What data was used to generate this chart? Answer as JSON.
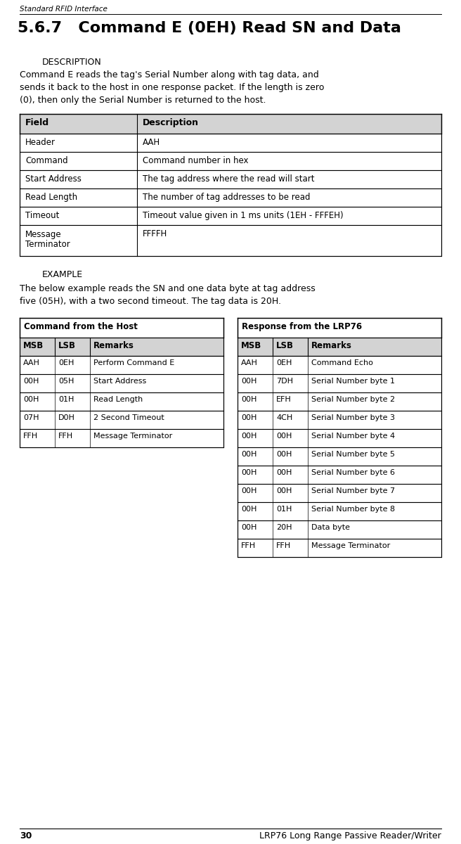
{
  "page_header": "Standard RFID Interface",
  "page_footer_num": "30",
  "page_footer_text": "LRP76 Long Range Passive Reader/Writer",
  "section_title": "5.6.7   Command E (0EH) Read SN and Data",
  "subsection1": "DESCRIPTION",
  "description": "Command E reads the tag's Serial Number along with tag data, and\nsends it back to the host in one response packet. If the length is zero\n(0), then only the Serial Number is returned to the host.",
  "field_table_header": [
    "Field",
    "Description"
  ],
  "field_table_rows": [
    [
      "Header",
      "AAH"
    ],
    [
      "Command",
      "Command number in hex"
    ],
    [
      "Start Address",
      "The tag address where the read will start"
    ],
    [
      "Read Length",
      "The number of tag addresses to be read"
    ],
    [
      "Timeout",
      "Timeout value given in 1 ms units (1EH - FFFEH)"
    ],
    [
      "Message\nTerminator",
      "FFFFH"
    ]
  ],
  "subsection2": "EXAMPLE",
  "example_text": "The below example reads the SN and one data byte at tag address\nfive (05H), with a two second timeout. The tag data is 20H.",
  "host_table_title": "Command from the Host",
  "host_table_header": [
    "MSB",
    "LSB",
    "Remarks"
  ],
  "host_table_rows": [
    [
      "AAH",
      "0EH",
      "Perform Command E"
    ],
    [
      "00H",
      "05H",
      "Start Address"
    ],
    [
      "00H",
      "01H",
      "Read Length"
    ],
    [
      "07H",
      "D0H",
      "2 Second Timeout"
    ],
    [
      "FFH",
      "FFH",
      "Message Terminator"
    ]
  ],
  "response_table_title": "Response from the LRP76",
  "response_table_header": [
    "MSB",
    "LSB",
    "Remarks"
  ],
  "response_table_rows": [
    [
      "AAH",
      "0EH",
      "Command Echo"
    ],
    [
      "00H",
      "7DH",
      "Serial Number byte 1"
    ],
    [
      "00H",
      "EFH",
      "Serial Number byte 2"
    ],
    [
      "00H",
      "4CH",
      "Serial Number byte 3"
    ],
    [
      "00H",
      "00H",
      "Serial Number byte 4"
    ],
    [
      "00H",
      "00H",
      "Serial Number byte 5"
    ],
    [
      "00H",
      "00H",
      "Serial Number byte 6"
    ],
    [
      "00H",
      "00H",
      "Serial Number byte 7"
    ],
    [
      "00H",
      "01H",
      "Serial Number byte 8"
    ],
    [
      "00H",
      "20H",
      "Data byte"
    ],
    [
      "FFH",
      "FFH",
      "Message Terminator"
    ]
  ],
  "header_bg": "#d3d3d3",
  "white_bg": "#ffffff",
  "border_color": "#000000"
}
